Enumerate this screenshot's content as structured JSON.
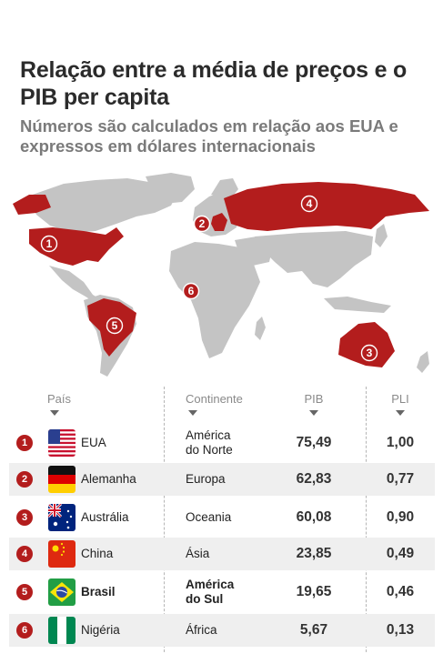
{
  "chart_data": {
    "type": "table",
    "title": "Relação entre a média de preços e o PIB per capita",
    "subtitle": "Números são calculados em relação aos EUA e expressos em dólares internacionais",
    "columns": [
      "País",
      "Continente",
      "PIB",
      "PLI"
    ],
    "rows": [
      {
        "rank": "1",
        "country": "EUA",
        "continent": [
          "América",
          "do Norte"
        ],
        "pib": "75,49",
        "pli": "1,00"
      },
      {
        "rank": "2",
        "country": "Alemanha",
        "continent": [
          "Europa"
        ],
        "pib": "62,83",
        "pli": "0,77"
      },
      {
        "rank": "3",
        "country": "Austrália",
        "continent": [
          "Oceania"
        ],
        "pib": "60,08",
        "pli": "0,90"
      },
      {
        "rank": "4",
        "country": "China",
        "continent": [
          "Ásia"
        ],
        "pib": "23,85",
        "pli": "0,49"
      },
      {
        "rank": "5",
        "country": "Brasil",
        "continent": [
          "América",
          "do Sul"
        ],
        "pib": "19,65",
        "pli": "0,46"
      },
      {
        "rank": "6",
        "country": "Nigéria",
        "continent": [
          "África"
        ],
        "pib": "5,67",
        "pli": "0,13"
      }
    ],
    "highlight_country": "Brasil",
    "colors": {
      "highlight": "#b31d1d",
      "map_land": "#c4c4c4",
      "row_shade": "#efefef"
    }
  }
}
